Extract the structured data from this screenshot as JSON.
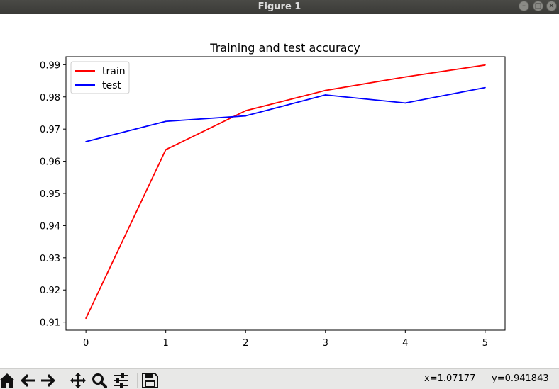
{
  "window": {
    "title": "Figure 1"
  },
  "toolbar": {
    "buttons": [
      "home-icon",
      "back-arrow-icon",
      "forward-arrow-icon",
      "pan-icon",
      "zoom-icon",
      "configure-subplots-icon",
      "save-icon"
    ],
    "coord_x": "x=1.07177",
    "coord_y": "y=0.941843"
  },
  "colors": {
    "train": "#ff0000",
    "test": "#0000ff"
  },
  "chart_data": {
    "type": "line",
    "title": "Training and test accuracy",
    "xlabel": "",
    "ylabel": "",
    "x": [
      0,
      1,
      2,
      3,
      4,
      5
    ],
    "xticks": [
      "0",
      "1",
      "2",
      "3",
      "4",
      "5"
    ],
    "yticks": [
      "0.91",
      "0.92",
      "0.93",
      "0.94",
      "0.95",
      "0.96",
      "0.97",
      "0.98",
      "0.99"
    ],
    "xlim": [
      -0.25,
      5.25
    ],
    "ylim": [
      0.9075,
      0.9925
    ],
    "grid": false,
    "legend_position": "upper-left",
    "series": [
      {
        "name": "train",
        "color": "#ff0000",
        "values": [
          0.9112,
          0.9636,
          0.9757,
          0.982,
          0.9862,
          0.9899
        ]
      },
      {
        "name": "test",
        "color": "#0000ff",
        "values": [
          0.9661,
          0.9724,
          0.9741,
          0.9806,
          0.9781,
          0.9829
        ]
      }
    ]
  }
}
